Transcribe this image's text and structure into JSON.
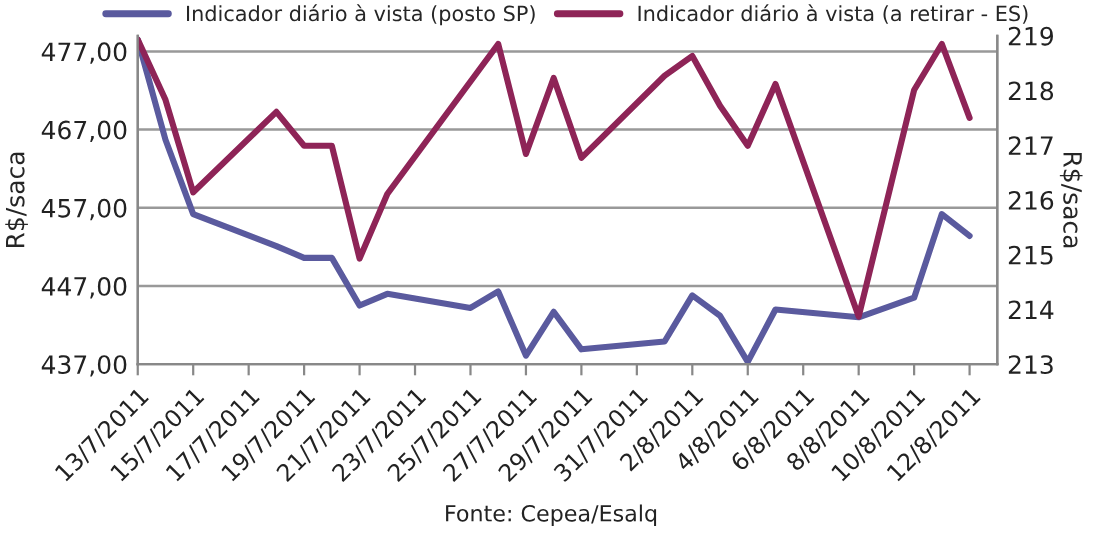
{
  "chart_data": {
    "type": "line",
    "ylabel": "R$/saca",
    "y2label": "R$/saca",
    "annotations": [
      "Fonte: Cepea/Esalq"
    ],
    "xlim": [
      "2011-07-13",
      "2011-08-13"
    ],
    "xticks": [
      {
        "value": "2011-07-13",
        "label": "13/7/2011"
      },
      {
        "value": "2011-07-15",
        "label": "15/7/2011"
      },
      {
        "value": "2011-07-17",
        "label": "17/7/2011"
      },
      {
        "value": "2011-07-19",
        "label": "19/7/2011"
      },
      {
        "value": "2011-07-21",
        "label": "21/7/2011"
      },
      {
        "value": "2011-07-23",
        "label": "23/7/2011"
      },
      {
        "value": "2011-07-25",
        "label": "25/7/2011"
      },
      {
        "value": "2011-07-27",
        "label": "27/7/2011"
      },
      {
        "value": "2011-07-29",
        "label": "29/7/2011"
      },
      {
        "value": "2011-07-31",
        "label": "31/7/2011"
      },
      {
        "value": "2011-08-02",
        "label": "2/8/2011"
      },
      {
        "value": "2011-08-04",
        "label": "4/8/2011"
      },
      {
        "value": "2011-08-06",
        "label": "6/8/2011"
      },
      {
        "value": "2011-08-08",
        "label": "8/8/2011"
      },
      {
        "value": "2011-08-10",
        "label": "10/8/2011"
      },
      {
        "value": "2011-08-12",
        "label": "12/8/2011"
      }
    ],
    "ylim": [
      437,
      479
    ],
    "yticks": [
      {
        "value": 437,
        "label": "437,00"
      },
      {
        "value": 447,
        "label": "447,00"
      },
      {
        "value": 457,
        "label": "457,00"
      },
      {
        "value": 467,
        "label": "467,00"
      },
      {
        "value": 477,
        "label": "477,00"
      }
    ],
    "y2lim": [
      213,
      219
    ],
    "y2ticks": [
      213,
      214,
      215,
      216,
      217,
      218,
      219
    ],
    "grid": "y",
    "legend": "top",
    "marker": "none",
    "line_style": "solid",
    "series": [
      {
        "name": "Indicador diário à vista (posto SP)",
        "color": "#5a5a9e",
        "x": [
          "2011-07-13",
          "2011-07-14",
          "2011-07-15",
          "2011-07-18",
          "2011-07-19",
          "2011-07-20",
          "2011-07-21",
          "2011-07-22",
          "2011-07-25",
          "2011-07-26",
          "2011-07-27",
          "2011-07-28",
          "2011-07-29",
          "2011-08-01",
          "2011-08-02",
          "2011-08-03",
          "2011-08-04",
          "2011-08-05",
          "2011-08-08",
          "2011-08-10",
          "2011-08-11",
          "2011-08-12"
        ],
        "values": [
          478.5,
          465.7,
          456.2,
          452.1,
          450.6,
          450.6,
          444.5,
          446.0,
          444.2,
          446.3,
          438.1,
          443.7,
          438.9,
          439.9,
          445.8,
          443.2,
          437.3,
          444.0,
          443.0,
          445.5,
          456.2,
          453.4
        ]
      },
      {
        "name": "Indicador diário à vista (a retirar - ES)",
        "color": "#8e2457",
        "axis": "y2",
        "x": [
          "2011-07-13",
          "2011-07-14",
          "2011-07-15",
          "2011-07-18",
          "2011-07-19",
          "2011-07-20",
          "2011-07-21",
          "2011-07-22",
          "2011-07-26",
          "2011-07-27",
          "2011-07-28",
          "2011-07-29",
          "2011-08-01",
          "2011-08-02",
          "2011-08-03",
          "2011-08-04",
          "2011-08-05",
          "2011-08-08",
          "2011-08-10",
          "2011-08-11",
          "2011-08-12"
        ],
        "values": [
          218.93,
          217.83,
          216.14,
          217.61,
          216.99,
          216.99,
          214.93,
          216.11,
          218.85,
          216.84,
          218.23,
          216.77,
          218.27,
          218.63,
          217.72,
          216.99,
          218.12,
          213.87,
          218.01,
          218.85,
          217.5
        ]
      }
    ]
  }
}
